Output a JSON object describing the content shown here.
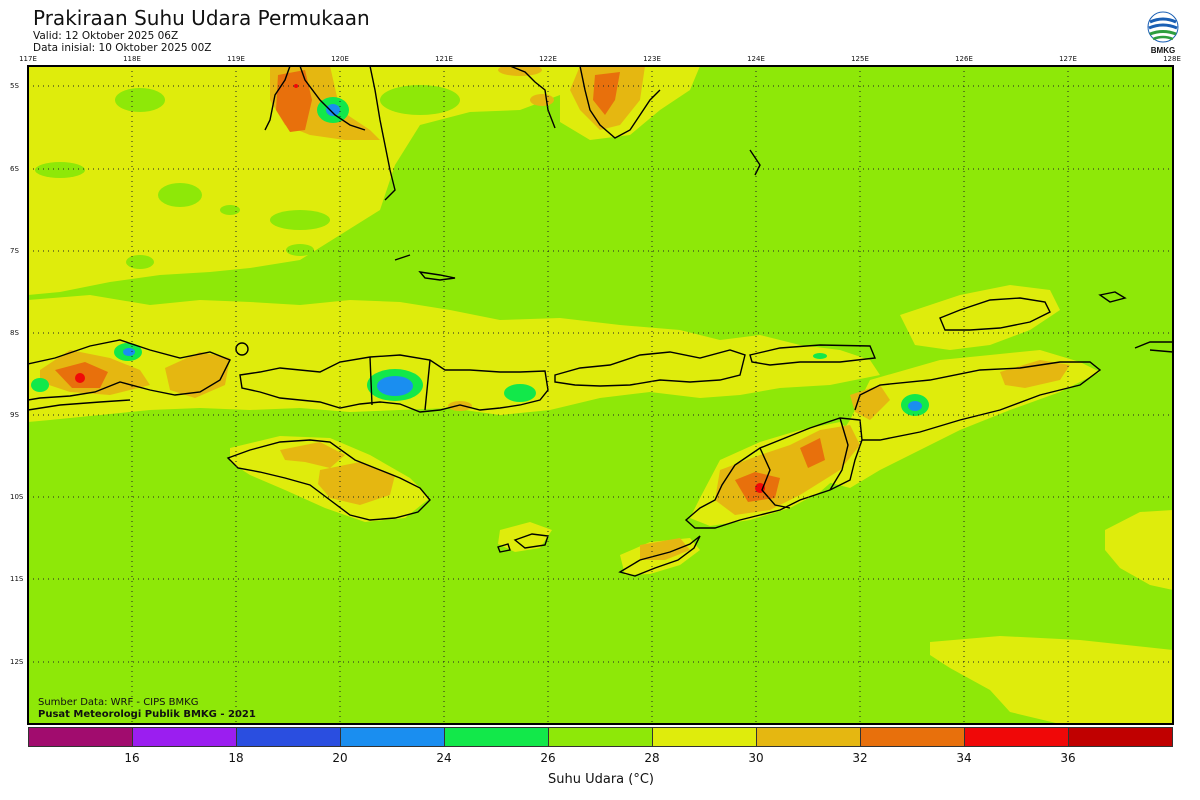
{
  "header": {
    "title": "Prakiraan Suhu Udara Permukaan",
    "valid": "Valid: 12 Oktober 2025 06Z",
    "initial": "Data inisial: 10 Oktober 2025 00Z"
  },
  "logo": {
    "text": "BMKG",
    "icon": "bmkg-logo-icon"
  },
  "map": {
    "lon_labels": [
      "117E",
      "118E",
      "119E",
      "120E",
      "121E",
      "122E",
      "123E",
      "124E",
      "125E",
      "126E",
      "127E",
      "128E"
    ],
    "lat_labels": [
      "5S",
      "6S",
      "7S",
      "8S",
      "9S",
      "10S",
      "11S",
      "12S"
    ],
    "credits": {
      "source": "Sumber Data: WRF - CIPS BMKG",
      "org": "Pusat Meteorologi Publik BMKG - 2021"
    },
    "colors": {
      "background": "#8ee808",
      "band_26_28": "#8ee808",
      "band_28_30": "#dfec0c",
      "band_30_32": "#e5b711",
      "band_32_34": "#e8700c",
      "band_34_36": "#f00808",
      "band_24_26": "#12e84a",
      "band_20_24": "#1a8ef0",
      "coastline": "#000000"
    }
  },
  "legend": {
    "label": "Suhu Udara (°C)",
    "ticks": [
      "16",
      "18",
      "20",
      "24",
      "26",
      "28",
      "30",
      "32",
      "34",
      "36"
    ],
    "colors": [
      "#a10c6e",
      "#9b1ef0",
      "#2a4ee0",
      "#1a8ef0",
      "#12e84a",
      "#8ee808",
      "#dfec0c",
      "#e5b711",
      "#e8700c",
      "#f00808",
      "#c00000"
    ]
  }
}
